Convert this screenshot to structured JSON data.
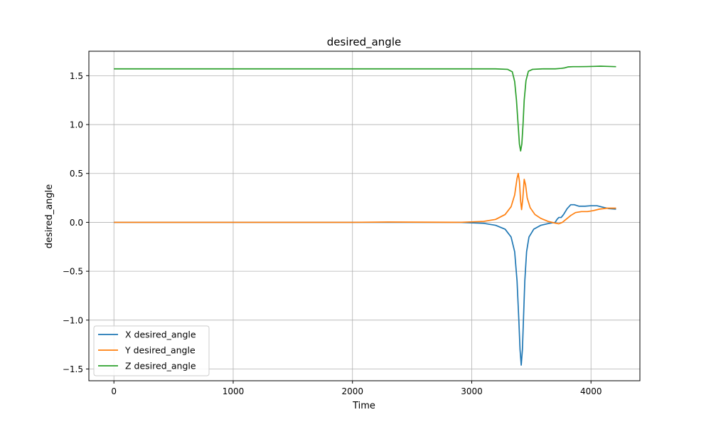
{
  "chart_data": {
    "type": "line",
    "title": "desired_angle",
    "xlabel": "Time",
    "ylabel": "desired_angle",
    "xlim": [
      -210,
      4410
    ],
    "ylim": [
      -1.62,
      1.75
    ],
    "xticks": [
      0,
      1000,
      2000,
      3000,
      4000
    ],
    "xtick_labels": [
      "0",
      "1000",
      "2000",
      "3000",
      "4000"
    ],
    "yticks": [
      -1.5,
      -1.0,
      -0.5,
      0.0,
      0.5,
      1.0,
      1.5
    ],
    "ytick_labels": [
      "−1.5",
      "−1.0",
      "−0.5",
      "0.0",
      "0.5",
      "1.0",
      "1.5"
    ],
    "grid": true,
    "legend_position": "lower-left",
    "series": [
      {
        "name": "X desired_angle",
        "color": "#1f77b4",
        "points": [
          [
            0,
            0.0
          ],
          [
            1000,
            0.0
          ],
          [
            2000,
            0.0
          ],
          [
            2900,
            0.0
          ],
          [
            3100,
            -0.01
          ],
          [
            3200,
            -0.03
          ],
          [
            3280,
            -0.07
          ],
          [
            3330,
            -0.15
          ],
          [
            3360,
            -0.3
          ],
          [
            3380,
            -0.6
          ],
          [
            3395,
            -1.0
          ],
          [
            3405,
            -1.3
          ],
          [
            3415,
            -1.46
          ],
          [
            3425,
            -1.3
          ],
          [
            3435,
            -0.95
          ],
          [
            3445,
            -0.6
          ],
          [
            3460,
            -0.3
          ],
          [
            3480,
            -0.15
          ],
          [
            3520,
            -0.07
          ],
          [
            3580,
            -0.03
          ],
          [
            3650,
            -0.01
          ],
          [
            3700,
            0.0
          ],
          [
            3715,
            0.03
          ],
          [
            3730,
            0.05
          ],
          [
            3750,
            0.05
          ],
          [
            3770,
            0.08
          ],
          [
            3800,
            0.14
          ],
          [
            3830,
            0.18
          ],
          [
            3860,
            0.18
          ],
          [
            3900,
            0.165
          ],
          [
            3950,
            0.165
          ],
          [
            4000,
            0.17
          ],
          [
            4050,
            0.17
          ],
          [
            4100,
            0.155
          ],
          [
            4150,
            0.14
          ],
          [
            4210,
            0.135
          ]
        ]
      },
      {
        "name": "Y desired_angle",
        "color": "#ff7f0e",
        "points": [
          [
            0,
            0.0
          ],
          [
            1000,
            0.0
          ],
          [
            2000,
            0.0
          ],
          [
            2300,
            0.003
          ],
          [
            2900,
            0.0
          ],
          [
            3100,
            0.01
          ],
          [
            3200,
            0.03
          ],
          [
            3280,
            0.08
          ],
          [
            3330,
            0.16
          ],
          [
            3360,
            0.28
          ],
          [
            3380,
            0.45
          ],
          [
            3390,
            0.5
          ],
          [
            3400,
            0.42
          ],
          [
            3410,
            0.22
          ],
          [
            3418,
            0.13
          ],
          [
            3428,
            0.24
          ],
          [
            3440,
            0.44
          ],
          [
            3452,
            0.38
          ],
          [
            3465,
            0.25
          ],
          [
            3490,
            0.15
          ],
          [
            3530,
            0.08
          ],
          [
            3580,
            0.04
          ],
          [
            3640,
            0.01
          ],
          [
            3690,
            -0.005
          ],
          [
            3710,
            -0.01
          ],
          [
            3730,
            -0.015
          ],
          [
            3760,
            0.0
          ],
          [
            3790,
            0.03
          ],
          [
            3830,
            0.07
          ],
          [
            3870,
            0.1
          ],
          [
            3920,
            0.11
          ],
          [
            3970,
            0.11
          ],
          [
            4020,
            0.12
          ],
          [
            4070,
            0.135
          ],
          [
            4140,
            0.145
          ],
          [
            4210,
            0.145
          ]
        ]
      },
      {
        "name": "Z desired_angle",
        "color": "#2ca02c",
        "points": [
          [
            0,
            1.57
          ],
          [
            1000,
            1.57
          ],
          [
            2000,
            1.57
          ],
          [
            3000,
            1.57
          ],
          [
            3200,
            1.57
          ],
          [
            3300,
            1.565
          ],
          [
            3340,
            1.54
          ],
          [
            3360,
            1.44
          ],
          [
            3375,
            1.25
          ],
          [
            3390,
            0.98
          ],
          [
            3400,
            0.8
          ],
          [
            3410,
            0.73
          ],
          [
            3420,
            0.8
          ],
          [
            3430,
            1.0
          ],
          [
            3440,
            1.25
          ],
          [
            3455,
            1.45
          ],
          [
            3475,
            1.545
          ],
          [
            3510,
            1.565
          ],
          [
            3600,
            1.57
          ],
          [
            3700,
            1.57
          ],
          [
            3750,
            1.575
          ],
          [
            3780,
            1.58
          ],
          [
            3810,
            1.59
          ],
          [
            3850,
            1.592
          ],
          [
            3900,
            1.592
          ],
          [
            3960,
            1.593
          ],
          [
            4020,
            1.595
          ],
          [
            4080,
            1.597
          ],
          [
            4140,
            1.595
          ],
          [
            4210,
            1.592
          ]
        ]
      }
    ]
  }
}
